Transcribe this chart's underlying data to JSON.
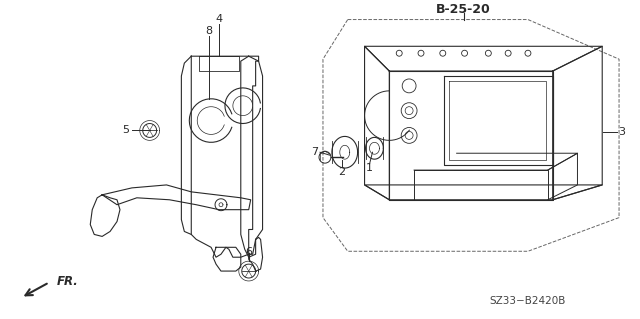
{
  "bg_color": "#ffffff",
  "line_color": "#2a2a2a",
  "label_color": "#000000",
  "title_ref": "B-25-20",
  "part_ref": "SZ33−B2420B",
  "figsize": [
    6.4,
    3.19
  ],
  "dpi": 100,
  "dash_box": {
    "pts_x": [
      345,
      530,
      620,
      620,
      530,
      345,
      325,
      325
    ],
    "pts_y": [
      15,
      15,
      55,
      220,
      255,
      255,
      220,
      55
    ]
  },
  "abs_body": {
    "pts_x": [
      385,
      555,
      610,
      610,
      555,
      385,
      345,
      345
    ],
    "pts_y": [
      35,
      35,
      75,
      200,
      230,
      230,
      200,
      75
    ]
  }
}
